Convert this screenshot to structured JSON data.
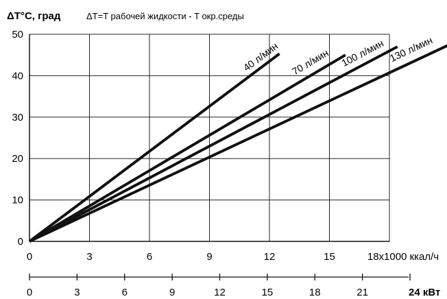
{
  "chart_data": {
    "type": "line",
    "ylabel": "ΔT°C, град",
    "subtitle": "ΔT=T рабочей жидкости - T окр.среды",
    "ylim": [
      0,
      50
    ],
    "yticks": [
      "0",
      "10",
      "20",
      "30",
      "40",
      "50"
    ],
    "xlim": [
      0,
      18
    ],
    "xticks": [
      "0",
      "3",
      "6",
      "9",
      "12",
      "15",
      "18x1000 ккал/ч"
    ],
    "x2_ticks": [
      "0",
      "3",
      "6",
      "9",
      "12",
      "15",
      "18",
      "21"
    ],
    "x2_unit_label": "24 кВт",
    "x2_max": 24,
    "grid": true,
    "series": [
      {
        "name": "40 л/мин",
        "points": [
          [
            0,
            0
          ],
          [
            12.5,
            45.3
          ]
        ]
      },
      {
        "name": "70 л/мин",
        "points": [
          [
            0,
            0
          ],
          [
            15.8,
            45.0
          ]
        ]
      },
      {
        "name": "100 л/мин",
        "points": [
          [
            0,
            0
          ],
          [
            18.4,
            47.0
          ]
        ]
      },
      {
        "name": "130 л/мин",
        "points": [
          [
            0,
            0
          ],
          [
            21.0,
            47.5
          ]
        ]
      }
    ]
  }
}
